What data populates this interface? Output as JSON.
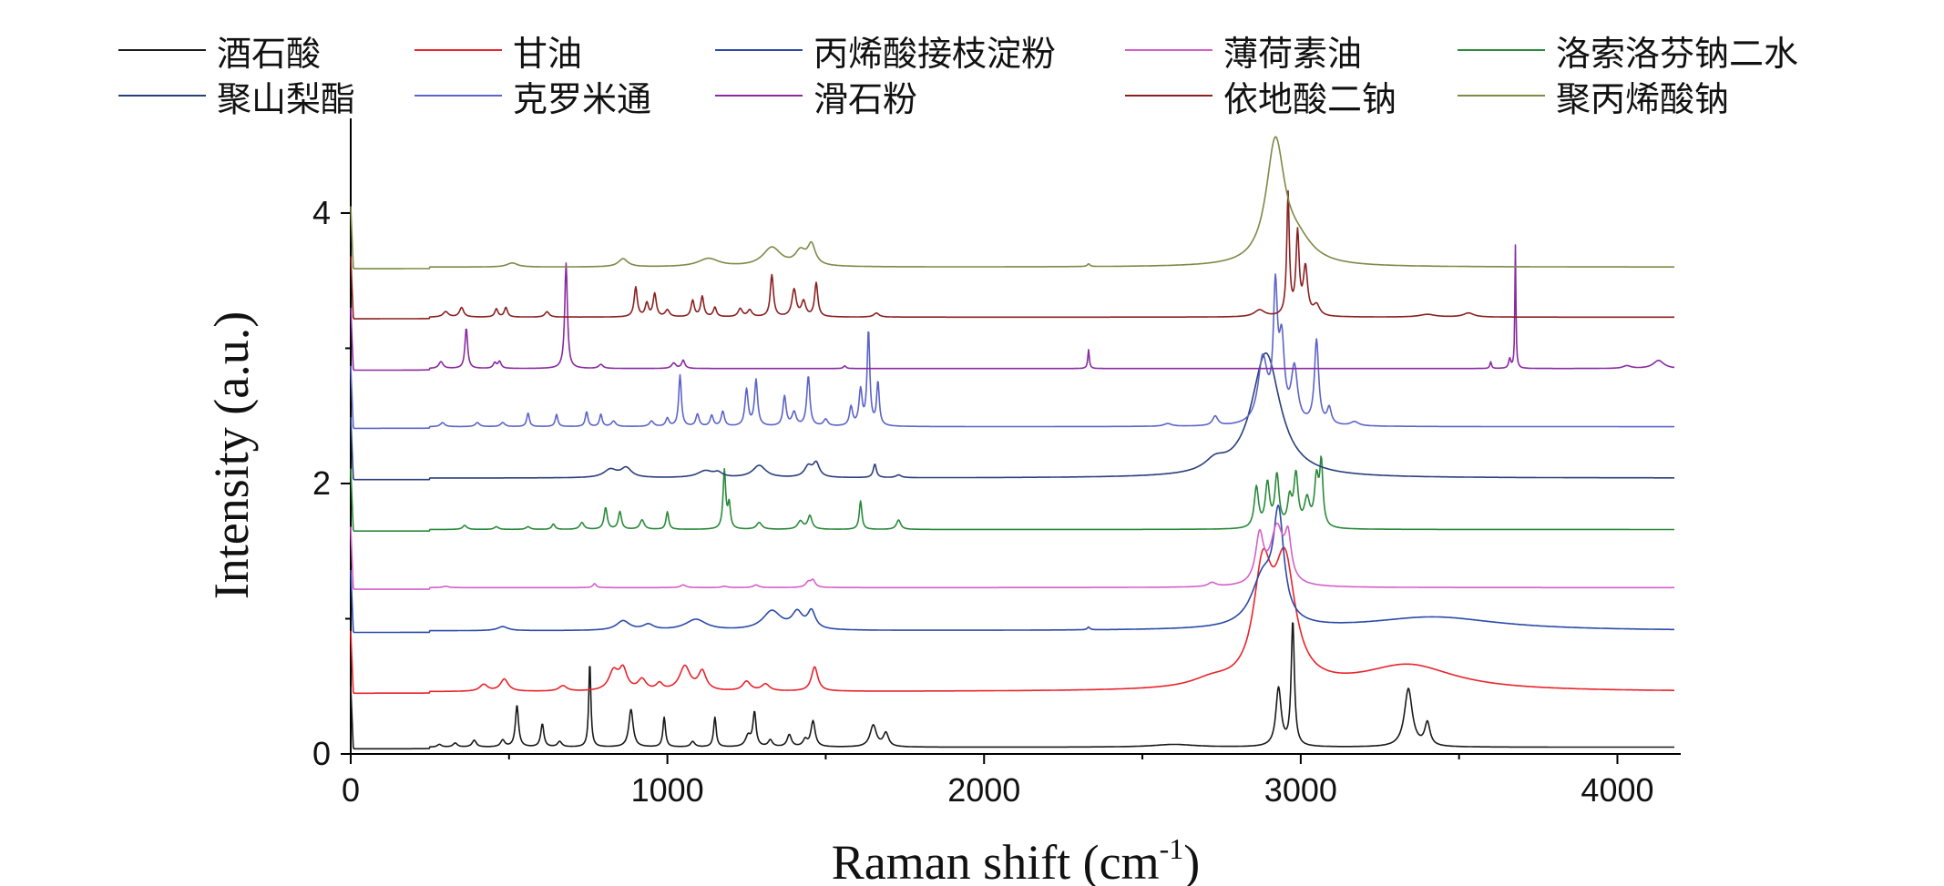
{
  "chart_data": {
    "type": "line",
    "xlabel": "Raman shift (cm",
    "xlabel_sup": "-1",
    "xlabel_close": ")",
    "ylabel": "Intensity (a.u.)",
    "xlim": [
      0,
      4200
    ],
    "ylim": [
      0,
      4.7
    ],
    "x_ticks": [
      0,
      1000,
      2000,
      3000,
      4000
    ],
    "y_ticks": [
      0,
      2,
      4
    ],
    "x_tick_labels": [
      "0",
      "1000",
      "2000",
      "3000",
      "4000"
    ],
    "y_tick_labels": [
      "0",
      "2",
      "4"
    ],
    "grid": false,
    "legend_position": "top",
    "series": [
      {
        "name": "酒石酸",
        "color": "#1a1a1a",
        "baseline": 0.05,
        "peaks": [
          [
            280,
            0.02,
            8
          ],
          [
            330,
            0.03,
            8
          ],
          [
            390,
            0.05,
            8
          ],
          [
            480,
            0.05,
            8
          ],
          [
            525,
            0.31,
            6
          ],
          [
            605,
            0.17,
            6
          ],
          [
            660,
            0.04,
            8
          ],
          [
            755,
            0.63,
            4
          ],
          [
            885,
            0.28,
            8
          ],
          [
            990,
            0.22,
            5
          ],
          [
            1080,
            0.04,
            8
          ],
          [
            1150,
            0.22,
            5
          ],
          [
            1255,
            0.08,
            10
          ],
          [
            1275,
            0.25,
            6
          ],
          [
            1325,
            0.05,
            8
          ],
          [
            1385,
            0.09,
            8
          ],
          [
            1435,
            0.05,
            8
          ],
          [
            1460,
            0.19,
            8
          ],
          [
            1650,
            0.16,
            12
          ],
          [
            1690,
            0.1,
            10
          ],
          [
            2600,
            0.02,
            80
          ],
          [
            2930,
            0.43,
            10
          ],
          [
            2975,
            0.92,
            6
          ],
          [
            3340,
            0.43,
            15
          ],
          [
            3400,
            0.17,
            10
          ]
        ]
      },
      {
        "name": "甘油",
        "color": "#e8242c",
        "baseline": 0.46,
        "peaks": [
          [
            420,
            0.05,
            15
          ],
          [
            485,
            0.09,
            15
          ],
          [
            670,
            0.04,
            15
          ],
          [
            830,
            0.14,
            18
          ],
          [
            860,
            0.15,
            15
          ],
          [
            920,
            0.08,
            15
          ],
          [
            975,
            0.05,
            12
          ],
          [
            1055,
            0.18,
            20
          ],
          [
            1110,
            0.14,
            15
          ],
          [
            1250,
            0.07,
            15
          ],
          [
            1310,
            0.05,
            15
          ],
          [
            1465,
            0.18,
            12
          ],
          [
            2720,
            0.06,
            80
          ],
          [
            2880,
            0.8,
            35
          ],
          [
            2950,
            0.86,
            40
          ],
          [
            3340,
            0.19,
            180
          ]
        ]
      },
      {
        "name": "丙烯酸接枝淀粉",
        "color": "#2b4aa8",
        "baseline": 0.91,
        "peaks": [
          [
            480,
            0.03,
            20
          ],
          [
            860,
            0.07,
            25
          ],
          [
            940,
            0.04,
            20
          ],
          [
            1090,
            0.08,
            40
          ],
          [
            1330,
            0.14,
            35
          ],
          [
            1410,
            0.12,
            20
          ],
          [
            1455,
            0.13,
            15
          ],
          [
            2330,
            0.02,
            5
          ],
          [
            2880,
            0.35,
            45
          ],
          [
            2930,
            0.75,
            20
          ],
          [
            3420,
            0.1,
            250
          ]
        ]
      },
      {
        "name": "薄荷素油",
        "color": "#d560c8",
        "baseline": 1.23,
        "peaks": [
          [
            300,
            0.01,
            10
          ],
          [
            770,
            0.03,
            6
          ],
          [
            1050,
            0.02,
            10
          ],
          [
            1180,
            0.01,
            10
          ],
          [
            1280,
            0.02,
            10
          ],
          [
            1445,
            0.04,
            10
          ],
          [
            1460,
            0.05,
            8
          ],
          [
            2720,
            0.03,
            15
          ],
          [
            2870,
            0.35,
            15
          ],
          [
            2925,
            0.42,
            25
          ],
          [
            2960,
            0.3,
            12
          ]
        ]
      },
      {
        "name": "洛索洛芬钠二水",
        "color": "#2a8a3a",
        "baseline": 1.66,
        "peaks": [
          [
            360,
            0.03,
            8
          ],
          [
            460,
            0.02,
            8
          ],
          [
            560,
            0.02,
            8
          ],
          [
            640,
            0.04,
            6
          ],
          [
            730,
            0.05,
            8
          ],
          [
            805,
            0.16,
            6
          ],
          [
            850,
            0.13,
            6
          ],
          [
            920,
            0.07,
            8
          ],
          [
            1000,
            0.13,
            5
          ],
          [
            1180,
            0.43,
            5
          ],
          [
            1195,
            0.18,
            5
          ],
          [
            1290,
            0.05,
            10
          ],
          [
            1420,
            0.06,
            10
          ],
          [
            1450,
            0.1,
            8
          ],
          [
            1610,
            0.21,
            5
          ],
          [
            1730,
            0.07,
            8
          ],
          [
            2860,
            0.3,
            8
          ],
          [
            2895,
            0.32,
            8
          ],
          [
            2925,
            0.38,
            8
          ],
          [
            2965,
            0.2,
            8
          ],
          [
            2985,
            0.38,
            8
          ],
          [
            3020,
            0.2,
            10
          ],
          [
            3050,
            0.35,
            8
          ],
          [
            3065,
            0.45,
            6
          ]
        ]
      },
      {
        "name": "聚山梨酯",
        "color": "#2a3f7a",
        "baseline": 2.04,
        "peaks": [
          [
            820,
            0.06,
            25
          ],
          [
            870,
            0.07,
            20
          ],
          [
            1120,
            0.05,
            30
          ],
          [
            1160,
            0.03,
            15
          ],
          [
            1290,
            0.09,
            25
          ],
          [
            1445,
            0.08,
            15
          ],
          [
            1470,
            0.1,
            12
          ],
          [
            1655,
            0.1,
            6
          ],
          [
            1730,
            0.02,
            10
          ],
          [
            2730,
            0.08,
            40
          ],
          [
            2890,
            0.92,
            55
          ]
        ]
      },
      {
        "name": "克罗米通",
        "color": "#5c64c8",
        "baseline": 2.42,
        "peaks": [
          [
            290,
            0.03,
            8
          ],
          [
            400,
            0.03,
            8
          ],
          [
            480,
            0.03,
            8
          ],
          [
            560,
            0.1,
            5
          ],
          [
            650,
            0.09,
            5
          ],
          [
            745,
            0.11,
            5
          ],
          [
            790,
            0.09,
            5
          ],
          [
            830,
            0.04,
            8
          ],
          [
            950,
            0.04,
            8
          ],
          [
            1000,
            0.06,
            6
          ],
          [
            1040,
            0.38,
            5
          ],
          [
            1095,
            0.09,
            6
          ],
          [
            1140,
            0.08,
            6
          ],
          [
            1175,
            0.11,
            6
          ],
          [
            1250,
            0.27,
            6
          ],
          [
            1280,
            0.34,
            6
          ],
          [
            1370,
            0.22,
            6
          ],
          [
            1400,
            0.1,
            8
          ],
          [
            1445,
            0.37,
            6
          ],
          [
            1500,
            0.05,
            8
          ],
          [
            1580,
            0.14,
            6
          ],
          [
            1610,
            0.26,
            6
          ],
          [
            1635,
            0.7,
            5
          ],
          [
            1665,
            0.32,
            5
          ],
          [
            2580,
            0.02,
            15
          ],
          [
            2730,
            0.07,
            10
          ],
          [
            2880,
            0.48,
            18
          ],
          [
            2920,
            0.92,
            8
          ],
          [
            2940,
            0.55,
            10
          ],
          [
            2980,
            0.4,
            12
          ],
          [
            3050,
            0.62,
            8
          ],
          [
            3090,
            0.12,
            8
          ],
          [
            3170,
            0.03,
            15
          ]
        ]
      },
      {
        "name": "滑石粉",
        "color": "#8a2aa0",
        "baseline": 2.85,
        "peaks": [
          [
            285,
            0.05,
            8
          ],
          [
            365,
            0.3,
            5
          ],
          [
            455,
            0.04,
            6
          ],
          [
            470,
            0.05,
            6
          ],
          [
            680,
            0.78,
            5
          ],
          [
            790,
            0.03,
            8
          ],
          [
            1020,
            0.04,
            8
          ],
          [
            1050,
            0.06,
            6
          ],
          [
            1560,
            0.02,
            5
          ],
          [
            2330,
            0.14,
            3
          ],
          [
            3600,
            0.05,
            3
          ],
          [
            3660,
            0.07,
            4
          ],
          [
            3678,
            0.91,
            2
          ],
          [
            4030,
            0.02,
            15
          ],
          [
            4130,
            0.06,
            20
          ]
        ]
      },
      {
        "name": "依地酸二钠",
        "color": "#8a2020",
        "baseline": 3.23,
        "peaks": [
          [
            300,
            0.04,
            10
          ],
          [
            350,
            0.07,
            8
          ],
          [
            460,
            0.06,
            6
          ],
          [
            490,
            0.07,
            6
          ],
          [
            620,
            0.04,
            8
          ],
          [
            900,
            0.22,
            6
          ],
          [
            935,
            0.1,
            6
          ],
          [
            960,
            0.17,
            6
          ],
          [
            1000,
            0.05,
            8
          ],
          [
            1080,
            0.12,
            6
          ],
          [
            1110,
            0.15,
            6
          ],
          [
            1150,
            0.07,
            6
          ],
          [
            1230,
            0.06,
            8
          ],
          [
            1260,
            0.05,
            8
          ],
          [
            1330,
            0.31,
            6
          ],
          [
            1400,
            0.2,
            8
          ],
          [
            1430,
            0.11,
            8
          ],
          [
            1470,
            0.25,
            6
          ],
          [
            1660,
            0.03,
            10
          ],
          [
            2870,
            0.05,
            20
          ],
          [
            2960,
            0.9,
            5
          ],
          [
            2990,
            0.6,
            6
          ],
          [
            3015,
            0.35,
            8
          ],
          [
            3050,
            0.08,
            12
          ],
          [
            3400,
            0.02,
            30
          ],
          [
            3530,
            0.03,
            20
          ]
        ]
      },
      {
        "name": "聚丙烯酸钠",
        "color": "#7c8a46",
        "baseline": 3.6,
        "peaks": [
          [
            510,
            0.03,
            20
          ],
          [
            860,
            0.06,
            18
          ],
          [
            1130,
            0.06,
            40
          ],
          [
            1330,
            0.14,
            35
          ],
          [
            1420,
            0.1,
            20
          ],
          [
            1455,
            0.15,
            15
          ],
          [
            2330,
            0.02,
            5
          ],
          [
            2920,
            0.9,
            35
          ],
          [
            2990,
            0.15,
            60
          ]
        ]
      }
    ]
  }
}
